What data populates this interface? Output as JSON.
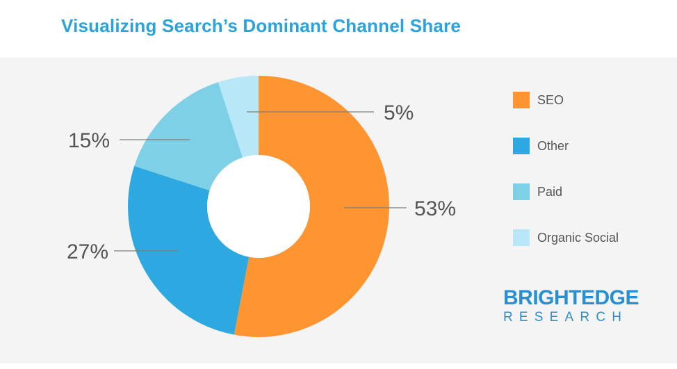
{
  "title": "Visualizing Search’s Dominant Channel Share",
  "chart_data": {
    "type": "pie",
    "donut": true,
    "series": [
      {
        "name": "SEO",
        "value": 53,
        "label": "53%",
        "color": "#ff9531"
      },
      {
        "name": "Other",
        "value": 27,
        "label": "27%",
        "color": "#2ea8e0"
      },
      {
        "name": "Paid",
        "value": 15,
        "label": "15%",
        "color": "#7dd0e6"
      },
      {
        "name": "Organic Social",
        "value": 5,
        "label": "5%",
        "color": "#b8e7f7"
      }
    ],
    "legend_position": "right"
  },
  "logo": {
    "top": "BRIGHTEDGE",
    "bottom": "RESEARCH",
    "color": "#2a8fd0"
  }
}
